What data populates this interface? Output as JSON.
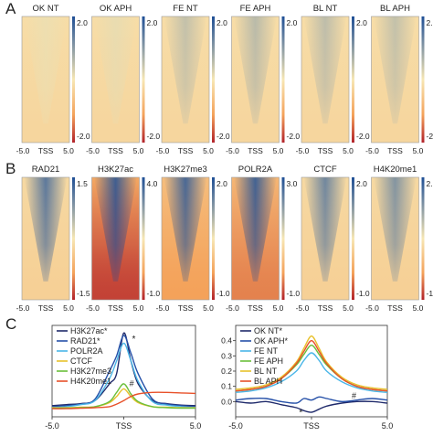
{
  "panels": {
    "A": "A",
    "B": "B",
    "C": "C"
  },
  "x_ticks": [
    "-5.0",
    "TSS",
    "5.0"
  ],
  "palettes": {
    "heat_neg": "#b2222a",
    "heat_mid": "#f7e7b4",
    "heat_pos": "#1f4f95",
    "orange_deep": "#e8702a",
    "orange_mid": "#f4a25a"
  },
  "chart_data": [
    {
      "type": "heatmap",
      "panel": "A",
      "xlabel": "",
      "x_range_kb": [
        -5.0,
        5.0
      ],
      "color_range": [
        -2.0,
        2.0
      ],
      "heatmaps": [
        {
          "title": "OK NT",
          "colorbar_ticks": [
            "2.0",
            "-2.0"
          ],
          "tss_enrichment": 0.1
        },
        {
          "title": "OK APH",
          "colorbar_ticks": [
            "2.0",
            "-2.0"
          ],
          "tss_enrichment": 0.15
        },
        {
          "title": "FE NT",
          "colorbar_ticks": [
            "2.0",
            "-2.0"
          ],
          "tss_enrichment": 0.55
        },
        {
          "title": "FE APH",
          "colorbar_ticks": [
            "2.0",
            "-2.0"
          ],
          "tss_enrichment": 0.65
        },
        {
          "title": "BL NT",
          "colorbar_ticks": [
            "2.0",
            "-2.0"
          ],
          "tss_enrichment": 0.6
        },
        {
          "title": "BL APH",
          "colorbar_ticks": [
            "2.0",
            "-2.0"
          ],
          "tss_enrichment": 0.55
        }
      ]
    },
    {
      "type": "heatmap",
      "panel": "B",
      "x_range_kb": [
        -5.0,
        5.0
      ],
      "heatmaps": [
        {
          "title": "RAD21",
          "colorbar_ticks": [
            "1.5",
            "-1.5"
          ],
          "color_range": [
            -1.5,
            1.5
          ],
          "background": -0.3,
          "tss_enrichment": 1.2
        },
        {
          "title": "H3K27ac",
          "colorbar_ticks": [
            "4.0",
            "-1.0"
          ],
          "color_range": [
            -1.0,
            4.0
          ],
          "background": -0.9,
          "tss_enrichment": 3.8
        },
        {
          "title": "H3K27me3",
          "colorbar_ticks": [
            "2.0",
            "-1.0"
          ],
          "color_range": [
            -1.0,
            2.0
          ],
          "background": -0.6,
          "tss_enrichment": 1.8
        },
        {
          "title": "POLR2A",
          "colorbar_ticks": [
            "3.0",
            "-1.0"
          ],
          "color_range": [
            -1.0,
            3.0
          ],
          "background": -0.7,
          "tss_enrichment": 2.8
        },
        {
          "title": "CTCF",
          "colorbar_ticks": [
            "2.0",
            "-1.0"
          ],
          "color_range": [
            -1.0,
            2.0
          ],
          "background": -0.2,
          "tss_enrichment": 1.4
        },
        {
          "title": "H4K20me1",
          "colorbar_ticks": [
            "2.5",
            "-1.5"
          ],
          "color_range": [
            -1.5,
            2.5
          ],
          "background": -0.3,
          "tss_enrichment": 1.5
        }
      ]
    },
    {
      "type": "line",
      "panel": "C-left",
      "x": [
        -5.0,
        -4.0,
        -3.0,
        -2.0,
        -1.0,
        -0.5,
        0.0,
        0.5,
        1.0,
        2.0,
        3.0,
        4.0,
        5.0
      ],
      "x_ticks": [
        "-5.0",
        "TSS",
        "5.0"
      ],
      "ylim": [
        -0.1,
        1.7
      ],
      "legend": "top-left",
      "series": [
        {
          "name": "H3K27ac*",
          "color": "#1f2a6b",
          "values": [
            0.12,
            0.14,
            0.16,
            0.22,
            0.55,
            0.75,
            1.55,
            1.0,
            0.55,
            0.22,
            0.16,
            0.13,
            0.12
          ]
        },
        {
          "name": "RAD21*",
          "color": "#2550a8",
          "values": [
            0.1,
            0.12,
            0.15,
            0.25,
            0.8,
            1.1,
            1.5,
            1.15,
            0.75,
            0.25,
            0.15,
            0.12,
            0.1
          ]
        },
        {
          "name": "POLR2A",
          "color": "#4ab6e8",
          "values": [
            0.08,
            0.1,
            0.14,
            0.22,
            0.65,
            1.0,
            1.35,
            1.0,
            0.6,
            0.2,
            0.13,
            0.1,
            0.08
          ]
        },
        {
          "name": "CTCF",
          "color": "#e8c12c",
          "values": [
            0.08,
            0.08,
            0.09,
            0.1,
            0.18,
            0.3,
            0.45,
            0.3,
            0.18,
            0.1,
            0.09,
            0.08,
            0.08
          ]
        },
        {
          "name": "H3K27me3",
          "color": "#6bbf3b",
          "values": [
            0.07,
            0.07,
            0.08,
            0.1,
            0.2,
            0.38,
            0.55,
            0.35,
            0.2,
            0.1,
            0.08,
            0.07,
            0.07
          ]
        },
        {
          "name": "H4K20me1",
          "color": "#e8512a",
          "values": [
            0.06,
            0.06,
            0.07,
            0.08,
            0.1,
            0.15,
            0.22,
            0.3,
            0.35,
            0.38,
            0.38,
            0.37,
            0.36
          ]
        }
      ],
      "annotations": [
        "*",
        "#"
      ]
    },
    {
      "type": "line",
      "panel": "C-right",
      "x": [
        -5.0,
        -4.0,
        -3.0,
        -2.0,
        -1.0,
        -0.5,
        0.0,
        0.5,
        1.0,
        2.0,
        3.0,
        4.0,
        5.0
      ],
      "x_ticks": [
        "-5.0",
        "TSS",
        "5.0"
      ],
      "ylim": [
        -0.1,
        0.5
      ],
      "y_ticks": [
        "0.4",
        "0.3",
        "0.2",
        "0.1",
        "0.0"
      ],
      "legend": "top-left",
      "series": [
        {
          "name": "OK NT*",
          "color": "#1f2a6b",
          "values": [
            0.0,
            -0.01,
            0.0,
            -0.02,
            -0.04,
            -0.06,
            -0.07,
            -0.05,
            -0.03,
            -0.01,
            0.0,
            0.0,
            -0.01
          ]
        },
        {
          "name": "OK APH*",
          "color": "#2550a8",
          "values": [
            0.01,
            0.02,
            0.02,
            0.0,
            -0.01,
            0.02,
            0.01,
            0.03,
            0.02,
            0.0,
            0.01,
            0.02,
            0.01
          ]
        },
        {
          "name": "FE NT",
          "color": "#4ab6e8",
          "values": [
            0.06,
            0.07,
            0.09,
            0.13,
            0.2,
            0.27,
            0.32,
            0.27,
            0.2,
            0.13,
            0.09,
            0.07,
            0.06
          ]
        },
        {
          "name": "FE APH",
          "color": "#6bbf3b",
          "values": [
            0.07,
            0.08,
            0.1,
            0.15,
            0.24,
            0.31,
            0.37,
            0.31,
            0.24,
            0.15,
            0.1,
            0.08,
            0.07
          ]
        },
        {
          "name": "BL NT",
          "color": "#e8c12c",
          "values": [
            0.08,
            0.09,
            0.11,
            0.16,
            0.26,
            0.35,
            0.43,
            0.35,
            0.26,
            0.16,
            0.11,
            0.09,
            0.08
          ]
        },
        {
          "name": "BL APH",
          "color": "#e8512a",
          "values": [
            0.07,
            0.08,
            0.1,
            0.15,
            0.25,
            0.33,
            0.4,
            0.33,
            0.25,
            0.15,
            0.1,
            0.08,
            0.07
          ]
        }
      ],
      "annotations": [
        "#",
        "*"
      ]
    }
  ]
}
